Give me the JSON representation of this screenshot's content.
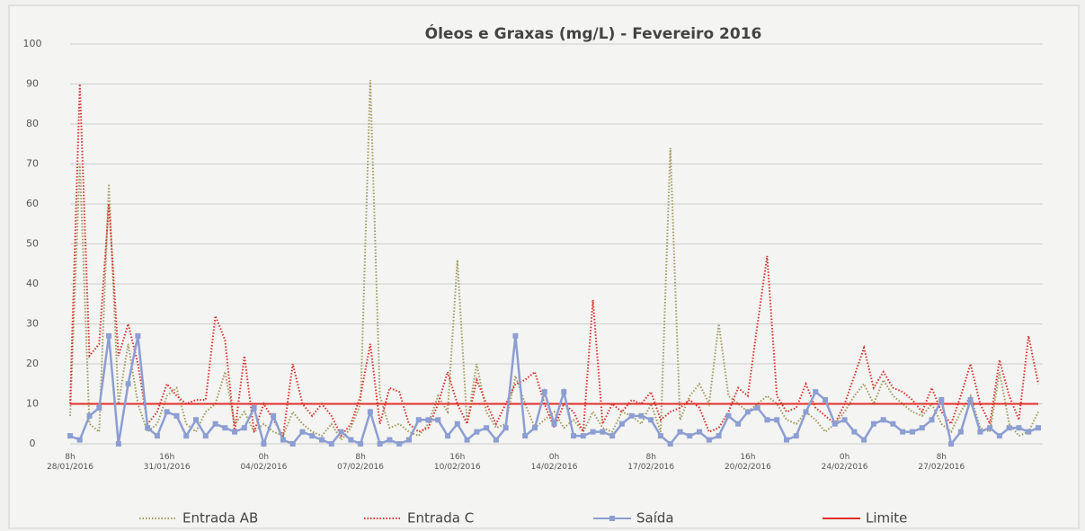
{
  "chart_data": {
    "type": "line",
    "title": "Óleos e Graxas (mg/L) - Fevereiro 2016",
    "categories": [
      "8h\n28/01/2016",
      null,
      null,
      null,
      null,
      null,
      null,
      null,
      null,
      null,
      "16h\n31/01/2016",
      null,
      null,
      null,
      null,
      null,
      null,
      null,
      null,
      null,
      "0h\n04/02/2016",
      null,
      null,
      null,
      null,
      null,
      null,
      null,
      null,
      null,
      "8h\n07/02/2016",
      null,
      null,
      null,
      null,
      null,
      null,
      null,
      null,
      null,
      "16h\n10/02/2016",
      null,
      null,
      null,
      null,
      null,
      null,
      null,
      null,
      null,
      "0h\n14/02/2016",
      null,
      null,
      null,
      null,
      null,
      null,
      null,
      null,
      null,
      "8h\n17/02/2016",
      null,
      null,
      null,
      null,
      null,
      null,
      null,
      null,
      null,
      "16h\n20/02/2016",
      null,
      null,
      null,
      null,
      null,
      null,
      null,
      null,
      null,
      "0h\n24/02/2016",
      null,
      null,
      null,
      null,
      null,
      null,
      null,
      null,
      null,
      "8h\n27/02/2016",
      null,
      null,
      null,
      null,
      null,
      null,
      null,
      null,
      null,
      null
    ],
    "ylim": [
      0,
      100
    ],
    "yticks": [
      0,
      10,
      20,
      30,
      40,
      50,
      60,
      70,
      80,
      90,
      100
    ],
    "grid": true,
    "legend": "bottom",
    "series": [
      {
        "name": "Entrada AB",
        "color": "#a09a5e",
        "line_style": "dotted",
        "marker": null,
        "values": [
          7,
          70,
          5,
          3,
          65,
          10,
          25,
          10,
          3,
          5,
          12,
          14,
          5,
          3,
          8,
          10,
          18,
          5,
          8,
          3,
          5,
          3,
          2,
          8,
          5,
          3,
          2,
          5,
          1,
          4,
          10,
          91,
          12,
          4,
          5,
          3,
          2,
          5,
          12,
          8,
          46,
          5,
          20,
          8,
          4,
          5,
          17,
          10,
          4,
          6,
          8,
          4,
          6,
          3,
          8,
          4,
          3,
          8,
          7,
          5,
          10,
          3,
          74,
          6,
          12,
          15,
          10,
          30,
          12,
          10,
          8,
          10,
          12,
          10,
          6,
          5,
          8,
          6,
          3,
          5,
          8,
          12,
          15,
          10,
          16,
          12,
          10,
          8,
          7,
          10,
          5,
          3,
          8,
          12,
          4,
          3,
          18,
          5,
          2,
          3,
          8
        ]
      },
      {
        "name": "Entrada C",
        "color": "#d9302c",
        "line_style": "dotted",
        "marker": null,
        "values": [
          10,
          90,
          22,
          25,
          60,
          22,
          30,
          20,
          5,
          8,
          15,
          12,
          10,
          11,
          11,
          32,
          26,
          3,
          22,
          3,
          10,
          6,
          2,
          20,
          10,
          7,
          10,
          7,
          2,
          5,
          12,
          25,
          5,
          14,
          13,
          5,
          3,
          4,
          10,
          18,
          10,
          5,
          16,
          10,
          5,
          10,
          15,
          16,
          18,
          10,
          4,
          10,
          8,
          3,
          36,
          5,
          10,
          8,
          11,
          10,
          13,
          6,
          8,
          9,
          11,
          9,
          3,
          4,
          8,
          14,
          12,
          30,
          47,
          12,
          8,
          9,
          15,
          9,
          7,
          5,
          10,
          17,
          24,
          14,
          18,
          14,
          13,
          11,
          8,
          14,
          8,
          5,
          12,
          20,
          10,
          5,
          21,
          12,
          6,
          27,
          15
        ]
      },
      {
        "name": "Saída",
        "color": "#8c9ed2",
        "line_style": "solid",
        "marker": "square",
        "values": [
          2,
          1,
          7,
          9,
          27,
          0,
          15,
          27,
          4,
          2,
          8,
          7,
          2,
          6,
          2,
          5,
          4,
          3,
          4,
          9,
          0,
          7,
          1,
          0,
          3,
          2,
          1,
          0,
          3,
          1,
          0,
          8,
          0,
          1,
          0,
          1,
          6,
          6,
          6,
          2,
          5,
          1,
          3,
          4,
          1,
          4,
          27,
          2,
          4,
          13,
          5,
          13,
          2,
          2,
          3,
          3,
          2,
          5,
          7,
          7,
          6,
          2,
          0,
          3,
          2,
          3,
          1,
          2,
          7,
          5,
          8,
          9,
          6,
          6,
          1,
          2,
          8,
          13,
          11,
          5,
          6,
          3,
          1,
          5,
          6,
          5,
          3,
          3,
          4,
          6,
          11,
          0,
          3,
          11,
          3,
          4,
          2,
          4,
          4,
          3,
          4
        ]
      },
      {
        "name": "Limite",
        "color": "#e0302a",
        "line_style": "solid",
        "marker": null,
        "values": [
          10,
          10,
          10,
          10,
          10,
          10,
          10,
          10,
          10,
          10,
          10,
          10,
          10,
          10,
          10,
          10,
          10,
          10,
          10,
          10,
          10,
          10,
          10,
          10,
          10,
          10,
          10,
          10,
          10,
          10,
          10,
          10,
          10,
          10,
          10,
          10,
          10,
          10,
          10,
          10,
          10,
          10,
          10,
          10,
          10,
          10,
          10,
          10,
          10,
          10,
          10,
          10,
          10,
          10,
          10,
          10,
          10,
          10,
          10,
          10,
          10,
          10,
          10,
          10,
          10,
          10,
          10,
          10,
          10,
          10,
          10,
          10,
          10,
          10,
          10,
          10,
          10,
          10,
          10,
          10,
          10,
          10,
          10,
          10,
          10,
          10,
          10,
          10,
          10,
          10,
          10,
          10,
          10,
          10,
          10,
          10,
          10,
          10,
          10,
          10,
          10
        ]
      }
    ]
  }
}
